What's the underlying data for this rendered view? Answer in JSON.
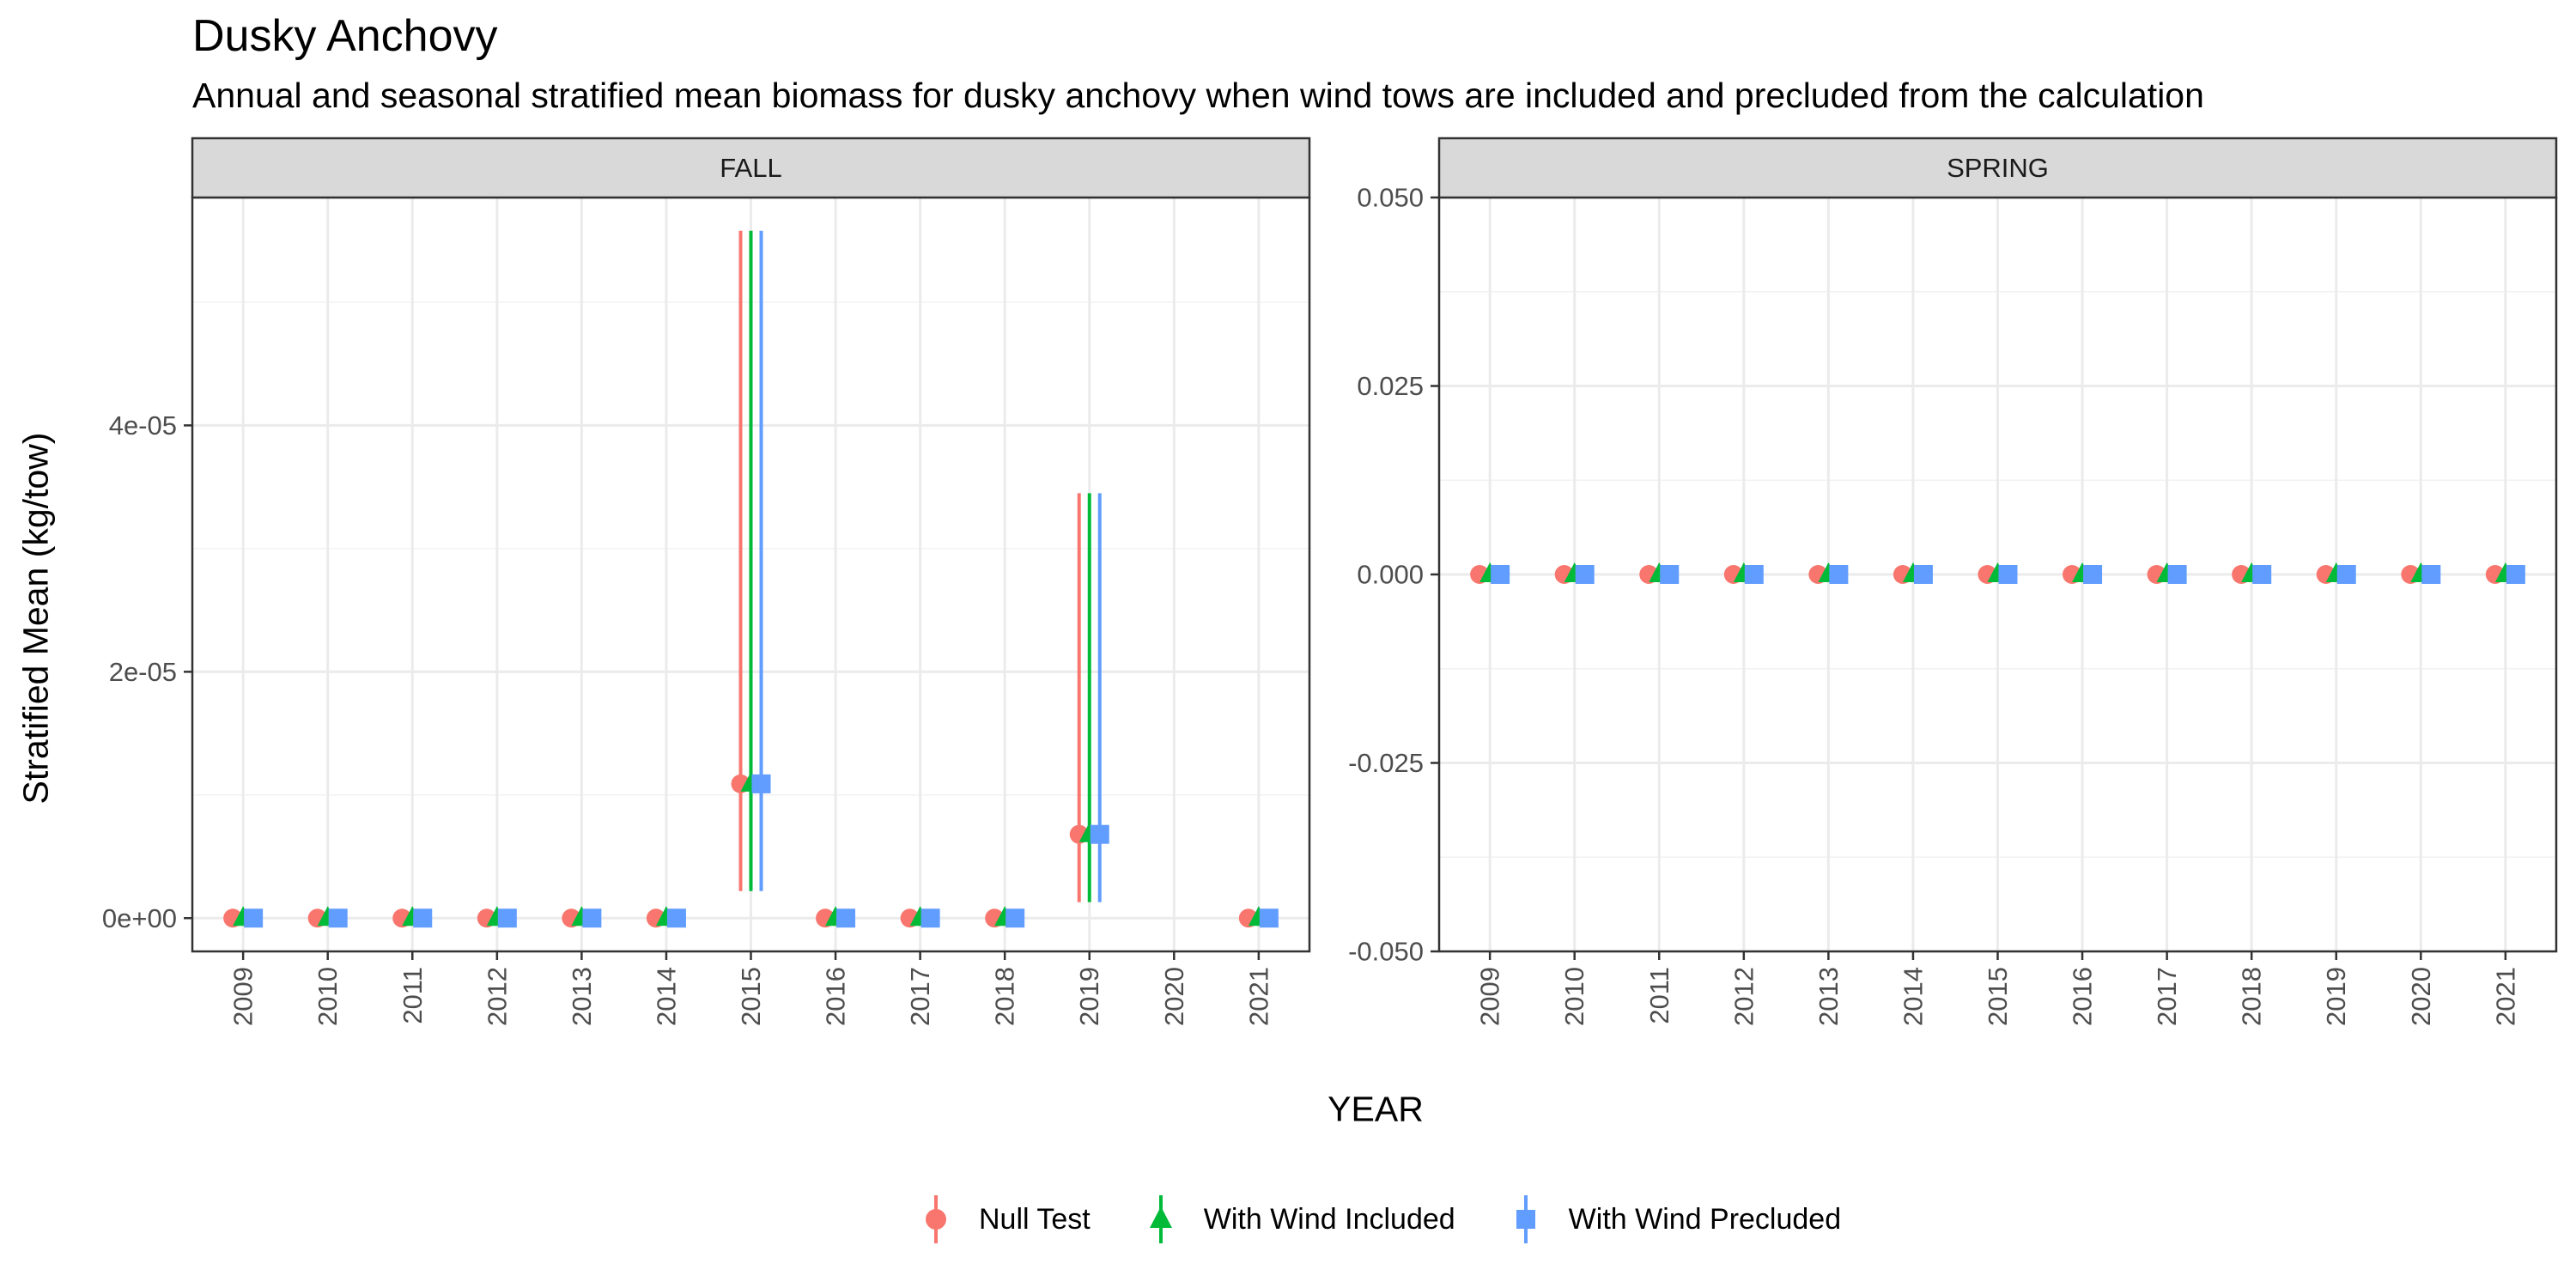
{
  "chart_data": {
    "type": "scatter",
    "title": "Dusky Anchovy",
    "subtitle": "Annual and seasonal stratified mean biomass for dusky anchovy when wind tows are included and precluded from the calculation",
    "xlabel": "YEAR",
    "ylabel": "Stratified Mean (kg/tow)",
    "grid": true,
    "legend_position": "bottom",
    "series": [
      {
        "name": "Null Test",
        "color": "#F8766D",
        "shape": "circle"
      },
      {
        "name": "With Wind Included",
        "color": "#00BA38",
        "shape": "triangle"
      },
      {
        "name": "With Wind Precluded",
        "color": "#619CFF",
        "shape": "square"
      }
    ],
    "panels": [
      {
        "strip": "FALL",
        "ylim": [
          -2.7e-06,
          5.85e-05
        ],
        "yticks": [
          0,
          2e-05,
          4e-05
        ],
        "ytick_labels": [
          "0e+00",
          "2e-05",
          "4e-05"
        ],
        "x_categories": [
          "2009",
          "2010",
          "2011",
          "2012",
          "2013",
          "2014",
          "2015",
          "2016",
          "2017",
          "2018",
          "2019",
          "2020",
          "2021"
        ],
        "points": [
          {
            "year": "2009",
            "mean": 0,
            "lower": 0,
            "upper": 0
          },
          {
            "year": "2010",
            "mean": 0,
            "lower": 0,
            "upper": 0
          },
          {
            "year": "2011",
            "mean": 0,
            "lower": 0,
            "upper": 0
          },
          {
            "year": "2012",
            "mean": 0,
            "lower": 0,
            "upper": 0
          },
          {
            "year": "2013",
            "mean": 0,
            "lower": 0,
            "upper": 0
          },
          {
            "year": "2014",
            "mean": 0,
            "lower": 0,
            "upper": 0
          },
          {
            "year": "2015",
            "mean": 1.09e-05,
            "lower": 2.2e-06,
            "upper": 5.58e-05
          },
          {
            "year": "2016",
            "mean": 0,
            "lower": 0,
            "upper": 0
          },
          {
            "year": "2017",
            "mean": 0,
            "lower": 0,
            "upper": 0
          },
          {
            "year": "2018",
            "mean": 0,
            "lower": 0,
            "upper": 0
          },
          {
            "year": "2019",
            "mean": 6.8e-06,
            "lower": 1.3e-06,
            "upper": 3.45e-05
          },
          {
            "year": "2021",
            "mean": 0,
            "lower": 0,
            "upper": 0
          }
        ]
      },
      {
        "strip": "SPRING",
        "ylim": [
          -0.05,
          0.05
        ],
        "yticks": [
          -0.05,
          -0.025,
          0,
          0.025,
          0.05
        ],
        "ytick_labels": [
          "-0.050",
          "-0.025",
          "0.000",
          "0.025",
          "0.050"
        ],
        "x_categories": [
          "2009",
          "2010",
          "2011",
          "2012",
          "2013",
          "2014",
          "2015",
          "2016",
          "2017",
          "2018",
          "2019",
          "2020",
          "2021"
        ],
        "points": [
          {
            "year": "2009",
            "mean": 0,
            "lower": 0,
            "upper": 0
          },
          {
            "year": "2010",
            "mean": 0,
            "lower": 0,
            "upper": 0
          },
          {
            "year": "2011",
            "mean": 0,
            "lower": 0,
            "upper": 0
          },
          {
            "year": "2012",
            "mean": 0,
            "lower": 0,
            "upper": 0
          },
          {
            "year": "2013",
            "mean": 0,
            "lower": 0,
            "upper": 0
          },
          {
            "year": "2014",
            "mean": 0,
            "lower": 0,
            "upper": 0
          },
          {
            "year": "2015",
            "mean": 0,
            "lower": 0,
            "upper": 0
          },
          {
            "year": "2016",
            "mean": 0,
            "lower": 0,
            "upper": 0
          },
          {
            "year": "2017",
            "mean": 0,
            "lower": 0,
            "upper": 0
          },
          {
            "year": "2018",
            "mean": 0,
            "lower": 0,
            "upper": 0
          },
          {
            "year": "2019",
            "mean": 0,
            "lower": 0,
            "upper": 0
          },
          {
            "year": "2020",
            "mean": 0,
            "lower": 0,
            "upper": 0
          },
          {
            "year": "2021",
            "mean": 0,
            "lower": 0,
            "upper": 0
          }
        ]
      }
    ]
  }
}
